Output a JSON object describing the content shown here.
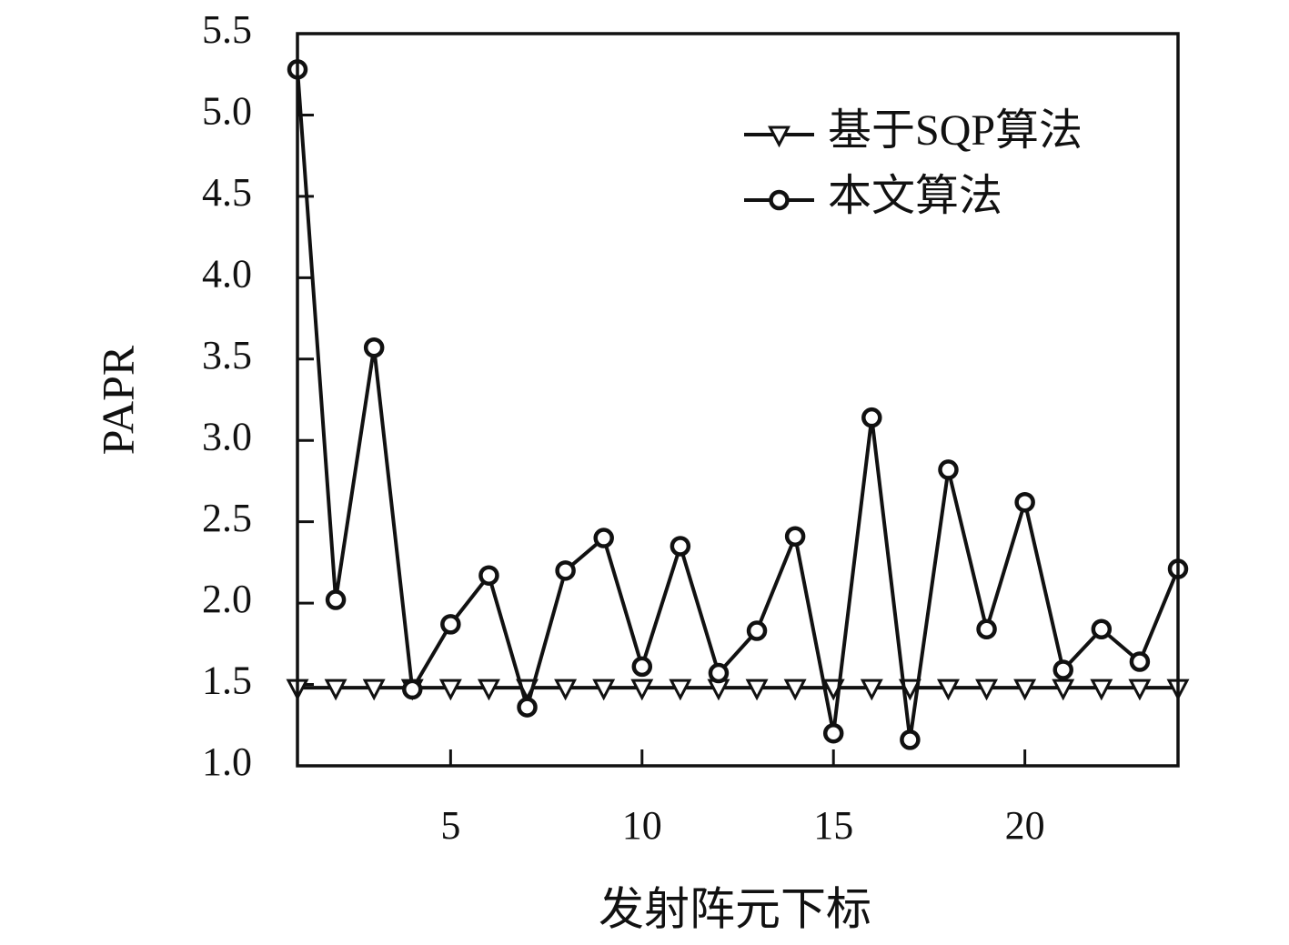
{
  "chart_data": {
    "type": "line",
    "xlabel": "发射阵元下标",
    "ylabel": "PAPR",
    "x": [
      1,
      2,
      3,
      4,
      5,
      6,
      7,
      8,
      9,
      10,
      11,
      12,
      13,
      14,
      15,
      16,
      17,
      18,
      19,
      20,
      21,
      22,
      23,
      24
    ],
    "series": [
      {
        "name": "基于SQP算法",
        "color": "#111111",
        "marker": "triangle-down",
        "values": [
          1.48,
          1.48,
          1.48,
          1.48,
          1.48,
          1.48,
          1.48,
          1.48,
          1.48,
          1.48,
          1.48,
          1.48,
          1.48,
          1.48,
          1.48,
          1.48,
          1.48,
          1.48,
          1.48,
          1.48,
          1.48,
          1.48,
          1.48,
          1.48
        ]
      },
      {
        "name": "本文算法",
        "color": "#111111",
        "marker": "circle",
        "values": [
          5.28,
          2.02,
          3.57,
          1.47,
          1.87,
          2.17,
          1.36,
          2.2,
          2.4,
          1.61,
          2.35,
          1.57,
          1.83,
          2.41,
          1.2,
          3.14,
          1.16,
          2.82,
          1.84,
          2.62,
          1.59,
          1.84,
          1.64,
          2.21
        ]
      }
    ],
    "xlim": [
      1,
      24
    ],
    "xticks": [
      5,
      10,
      15,
      20
    ],
    "ylim": [
      1,
      5.5
    ],
    "yticks": [
      {
        "value": 1,
        "label": "1.0"
      },
      1.5,
      {
        "value": 2,
        "label": "2.0"
      },
      2.5,
      {
        "value": 3,
        "label": "3.0"
      },
      3.5,
      {
        "value": 4,
        "label": "4.0"
      },
      4.5,
      {
        "value": 5,
        "label": "5.0"
      },
      5.5
    ],
    "legend": "upper right",
    "grid": false
  }
}
